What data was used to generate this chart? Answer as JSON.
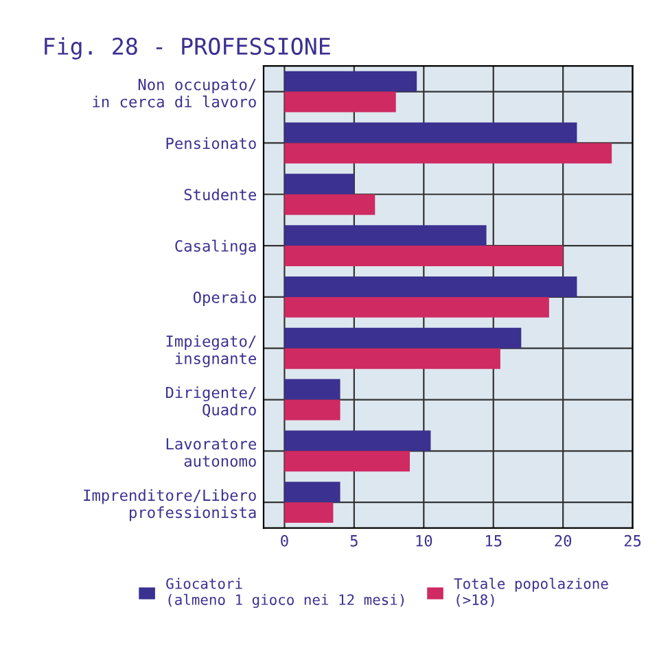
{
  "chart_data": {
    "type": "bar",
    "orientation": "horizontal",
    "title": "Fig. 28 - PROFESSIONE",
    "categories": [
      "Non occupato/\nin cerca di lavoro",
      "Pensionato",
      "Studente",
      "Casalinga",
      "Operaio",
      "Impiegato/\ninsgnante",
      "Dirigente/\nQuadro",
      "Lavoratore\nautonomo",
      "Imprenditore/Libero\nprofessionista"
    ],
    "series": [
      {
        "name": "Giocatori\n(almeno 1 gioco nei 12 mesi)",
        "color": "#3b3190",
        "values": [
          9.5,
          21,
          5,
          14.5,
          21,
          17,
          4,
          10.5,
          4
        ]
      },
      {
        "name": "Totale popolazione\n(>18)",
        "color": "#cf2a62",
        "values": [
          8,
          23.5,
          6.5,
          20,
          19,
          15.5,
          4,
          9,
          3.5
        ]
      }
    ],
    "xlim": [
      -1.5,
      25
    ],
    "xticks": [
      0,
      5,
      10,
      15,
      20,
      25
    ],
    "grid": true,
    "legend": "bottom"
  }
}
